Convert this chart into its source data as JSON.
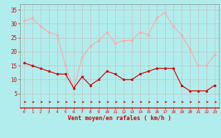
{
  "hours": [
    0,
    1,
    2,
    3,
    4,
    5,
    6,
    7,
    8,
    9,
    10,
    11,
    12,
    13,
    14,
    15,
    16,
    17,
    18,
    19,
    20,
    21,
    22,
    23
  ],
  "wind_avg": [
    16,
    15,
    14,
    13,
    12,
    12,
    7,
    11,
    8,
    10,
    13,
    12,
    10,
    10,
    12,
    13,
    14,
    14,
    14,
    8,
    6,
    6,
    6,
    8
  ],
  "wind_gust": [
    31,
    32,
    29,
    27,
    26,
    15,
    7,
    18,
    22,
    24,
    27,
    23,
    24,
    24,
    27,
    26,
    32,
    34,
    29,
    26,
    21,
    15,
    15,
    19
  ],
  "avg_color": "#cc0000",
  "gust_color": "#ffaaaa",
  "dir_color": "#cc0000",
  "bg_color": "#b2eded",
  "grid_color": "#c0c0c0",
  "xlabel": "Vent moyen/en rafales ( km/h )",
  "ylabel_ticks": [
    5,
    10,
    15,
    20,
    25,
    30,
    35
  ],
  "xlim": [
    -0.5,
    23.5
  ],
  "ylim": [
    0,
    37
  ],
  "spine_color": "#888888"
}
